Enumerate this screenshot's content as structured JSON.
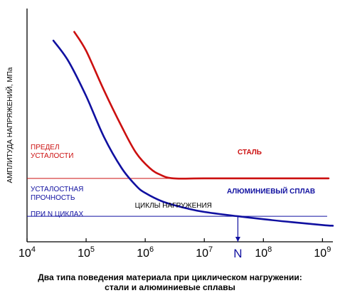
{
  "chart_data": {
    "type": "line",
    "xscale": "log",
    "xlabel": "ЦИКЛЫ НАГРУЖЕНИЯ",
    "ylabel": "АМПЛИТУДА НАПРЯЖЕНИЙ, МПа",
    "xlim": [
      10000,
      1500000000
    ],
    "x_ticks": [
      {
        "value": 10000,
        "base": "10",
        "exp": "4"
      },
      {
        "value": 100000,
        "base": "10",
        "exp": "5"
      },
      {
        "value": 1000000,
        "base": "10",
        "exp": "6"
      },
      {
        "value": 10000000,
        "base": "10",
        "exp": "7"
      },
      {
        "value": 100000000,
        "base": "10",
        "exp": "8"
      },
      {
        "value": 1000000000,
        "base": "10",
        "exp": "9"
      }
    ],
    "n_marker": {
      "label": "N",
      "value": 37000000
    },
    "series": [
      {
        "name": "СТАЛЬ",
        "color": "#cc1010",
        "x": [
          63000,
          100000,
          200000,
          400000,
          700000,
          1200000,
          1800000,
          3000000,
          10000000,
          100000000,
          1000000000,
          1200000000
        ],
        "y": [
          288,
          262,
          208,
          158,
          122,
          101,
          92,
          87,
          87,
          87,
          87,
          87
        ]
      },
      {
        "name": "АЛЮМИНИЕВЫЙ СПЛАВ",
        "color": "#1010a0",
        "x": [
          28000,
          50000,
          100000,
          200000,
          400000,
          700000,
          1000000,
          2000000,
          5000000,
          10000000,
          37000000,
          100000000,
          300000000,
          1000000000,
          1500000000
        ],
        "y": [
          276,
          248,
          200,
          144,
          101,
          77,
          67,
          55,
          46,
          41,
          35,
          31,
          27,
          23,
          22
        ]
      }
    ],
    "annotations": [
      {
        "text": "ПРЕДЕЛ",
        "group": "fatigue_limit"
      },
      {
        "text": "УСТАЛОСТИ",
        "group": "fatigue_limit"
      },
      {
        "text": "УСТАЛОСТНАЯ",
        "group": "fatigue_strength"
      },
      {
        "text": "ПРОЧНОСТЬ",
        "group": "fatigue_strength"
      },
      {
        "text": "ПРИ N ЦИКЛАХ",
        "group": "fatigue_strength"
      }
    ],
    "reference_lines": [
      {
        "y": 87,
        "color": "#cc1010"
      },
      {
        "y": 35,
        "color": "#1010a0"
      }
    ],
    "ylim": [
      0,
      320
    ]
  },
  "caption": {
    "line1": "Два типа поведения материала при циклическом нагружении:",
    "line2": "стали и алюминиевые сплавы"
  }
}
